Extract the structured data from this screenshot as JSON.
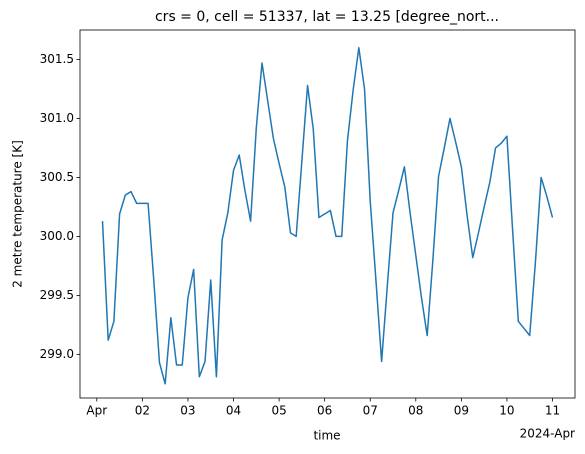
{
  "chart_data": {
    "type": "line",
    "title": "crs = 0, cell = 51337, lat = 13.25 [degree_nort...",
    "xlabel": "time",
    "ylabel": "2 metre temperature [K]",
    "x_offset_label": "2024-Apr",
    "color": "#1f77b4",
    "xlim": [
      "2024-03-31T15:09",
      "2024-04-11T11:51"
    ],
    "xticks": [
      {
        "value": "2024-04-01T00:00",
        "label": "Apr"
      },
      {
        "value": "2024-04-02T00:00",
        "label": "02"
      },
      {
        "value": "2024-04-03T00:00",
        "label": "03"
      },
      {
        "value": "2024-04-04T00:00",
        "label": "04"
      },
      {
        "value": "2024-04-05T00:00",
        "label": "05"
      },
      {
        "value": "2024-04-06T00:00",
        "label": "06"
      },
      {
        "value": "2024-04-07T00:00",
        "label": "07"
      },
      {
        "value": "2024-04-08T00:00",
        "label": "08"
      },
      {
        "value": "2024-04-09T00:00",
        "label": "09"
      },
      {
        "value": "2024-04-10T00:00",
        "label": "10"
      },
      {
        "value": "2024-04-11T00:00",
        "label": "11"
      }
    ],
    "ylim": [
      298.63,
      301.75
    ],
    "yticks": [
      {
        "value": 299,
        "label": "299.0"
      },
      299.5,
      {
        "value": 300,
        "label": "300.0"
      },
      300.5,
      {
        "value": 301,
        "label": "301.0"
      },
      301.5
    ],
    "x": [
      "2024-04-01T03:00",
      "2024-04-01T06:00",
      "2024-04-01T09:00",
      "2024-04-01T12:00",
      "2024-04-01T15:00",
      "2024-04-01T18:00",
      "2024-04-01T21:00",
      "2024-04-02T00:00",
      "2024-04-02T03:00",
      "2024-04-02T06:00",
      "2024-04-02T09:00",
      "2024-04-02T12:00",
      "2024-04-02T15:00",
      "2024-04-02T18:00",
      "2024-04-02T21:00",
      "2024-04-03T00:00",
      "2024-04-03T03:00",
      "2024-04-03T06:00",
      "2024-04-03T09:00",
      "2024-04-03T12:00",
      "2024-04-03T15:00",
      "2024-04-03T18:00",
      "2024-04-03T21:00",
      "2024-04-04T00:00",
      "2024-04-04T03:00",
      "2024-04-04T06:00",
      "2024-04-04T09:00",
      "2024-04-04T12:00",
      "2024-04-04T15:00",
      "2024-04-04T18:00",
      "2024-04-04T21:00",
      "2024-04-05T00:00",
      "2024-04-05T03:00",
      "2024-04-05T06:00",
      "2024-04-05T09:00",
      "2024-04-05T12:00",
      "2024-04-05T15:00",
      "2024-04-05T18:00",
      "2024-04-05T21:00",
      "2024-04-06T00:00",
      "2024-04-06T03:00",
      "2024-04-06T06:00",
      "2024-04-06T09:00",
      "2024-04-06T12:00",
      "2024-04-06T15:00",
      "2024-04-06T18:00",
      "2024-04-06T21:00",
      "2024-04-07T00:00",
      "2024-04-07T03:00",
      "2024-04-07T06:00",
      "2024-04-07T09:00",
      "2024-04-07T12:00",
      "2024-04-07T15:00",
      "2024-04-07T18:00",
      "2024-04-07T21:00",
      "2024-04-08T00:00",
      "2024-04-08T03:00",
      "2024-04-08T06:00",
      "2024-04-08T09:00",
      "2024-04-08T12:00",
      "2024-04-08T15:00",
      "2024-04-08T18:00",
      "2024-04-08T21:00",
      "2024-04-09T00:00",
      "2024-04-09T03:00",
      "2024-04-09T06:00",
      "2024-04-09T09:00",
      "2024-04-09T12:00",
      "2024-04-09T15:00",
      "2024-04-09T18:00",
      "2024-04-09T21:00",
      "2024-04-10T00:00",
      "2024-04-10T03:00",
      "2024-04-10T06:00",
      "2024-04-10T09:00",
      "2024-04-10T12:00",
      "2024-04-10T15:00",
      "2024-04-10T18:00",
      "2024-04-10T21:00",
      "2024-04-11T00:00"
    ],
    "values": [
      300.13,
      299.12,
      299.28,
      300.19,
      300.35,
      300.38,
      300.28,
      300.28,
      300.28,
      299.63,
      298.93,
      298.75,
      299.31,
      298.91,
      298.91,
      299.48,
      299.72,
      298.81,
      298.94,
      299.63,
      298.81,
      299.97,
      300.2,
      300.56,
      300.69,
      300.39,
      300.13,
      300.92,
      301.47,
      301.15,
      300.83,
      300.62,
      300.42,
      300.03,
      300.0,
      300.64,
      301.28,
      300.91,
      300.16,
      300.19,
      300.22,
      300.0,
      300.0,
      300.81,
      301.24,
      301.6,
      301.25,
      300.3,
      299.63,
      298.94,
      299.58,
      300.2,
      300.39,
      300.59,
      300.2,
      299.84,
      299.48,
      299.16,
      299.8,
      300.51,
      300.75,
      301.0,
      300.8,
      300.59,
      300.18,
      299.82,
      300.03,
      300.25,
      300.46,
      300.75,
      300.79,
      300.85,
      300.05,
      299.28,
      299.22,
      299.16,
      299.78,
      300.5,
      300.34,
      300.16
    ]
  }
}
